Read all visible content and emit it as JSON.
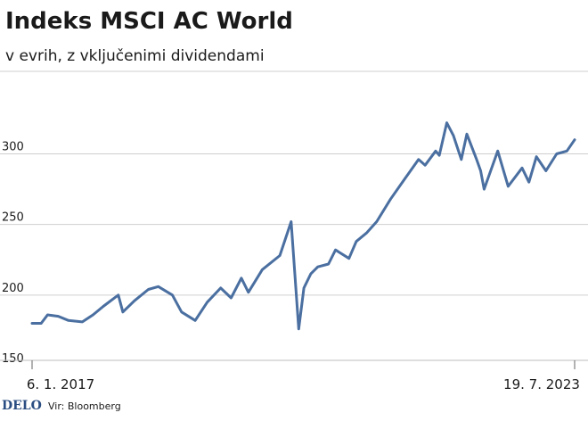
{
  "colors": {
    "line": "#4a6fa0",
    "grid": "#cfcfcf",
    "text": "#1a1a1a",
    "brand": "#2a4d82"
  },
  "footer": {
    "brand": "DELO",
    "source": "Vir: Bloomberg"
  },
  "chart_data": {
    "type": "line",
    "title": "Indeks MSCI AC World",
    "subtitle": "v evrih, z vključenimi dividendami",
    "xlabel": "",
    "ylabel": "",
    "x_range": [
      "2017-01-06",
      "2023-07-19"
    ],
    "x_tick_labels": [
      "6. 1. 2017",
      "19. 7. 2023"
    ],
    "y_ticks": [
      150,
      200,
      250,
      300
    ],
    "ylim": [
      150,
      330
    ],
    "grid": true,
    "series": [
      {
        "x": [
          "2017-01-06",
          "2017-02-15",
          "2017-03-15",
          "2017-05-01",
          "2017-06-15",
          "2017-08-15",
          "2017-10-01",
          "2017-11-15",
          "2018-01-20",
          "2018-02-09",
          "2018-04-01",
          "2018-06-01",
          "2018-07-15",
          "2018-09-15",
          "2018-10-25",
          "2018-12-24",
          "2019-02-15",
          "2019-04-15",
          "2019-05-31",
          "2019-07-15",
          "2019-08-15",
          "2019-10-15",
          "2019-12-31",
          "2020-02-19",
          "2020-03-23",
          "2020-04-15",
          "2020-05-15",
          "2020-06-15",
          "2020-08-01",
          "2020-09-01",
          "2020-10-30",
          "2020-12-01",
          "2021-01-15",
          "2021-03-01",
          "2021-05-01",
          "2021-07-01",
          "2021-09-01",
          "2021-09-30",
          "2021-11-15",
          "2021-12-01",
          "2022-01-03",
          "2022-02-01",
          "2022-03-08",
          "2022-04-01",
          "2022-05-12",
          "2022-06-01",
          "2022-06-16",
          "2022-08-15",
          "2022-09-30",
          "2022-11-30",
          "2022-12-30",
          "2023-02-01",
          "2023-03-15",
          "2023-05-01",
          "2023-06-15",
          "2023-07-19"
        ],
        "values": [
          180,
          180,
          186,
          185,
          182,
          181,
          186,
          192,
          200,
          188,
          196,
          204,
          206,
          200,
          188,
          182,
          195,
          205,
          198,
          212,
          202,
          218,
          228,
          252,
          176,
          205,
          215,
          220,
          222,
          232,
          226,
          238,
          244,
          252,
          268,
          282,
          296,
          292,
          302,
          299,
          322,
          313,
          296,
          314,
          297,
          288,
          275,
          302,
          277,
          290,
          280,
          298,
          288,
          300,
          302,
          310
        ]
      }
    ]
  }
}
